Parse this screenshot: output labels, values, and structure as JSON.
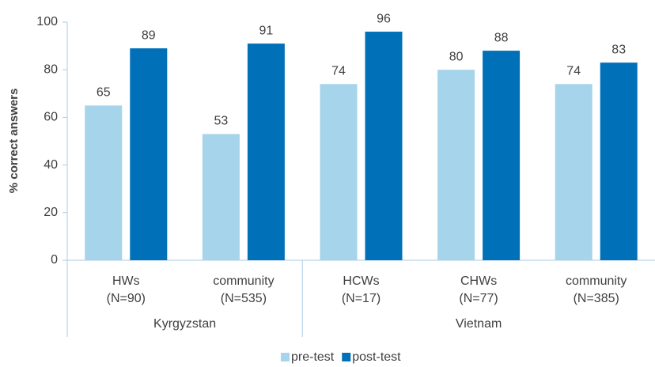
{
  "chart_data": {
    "type": "bar",
    "y_label": "% correct answers",
    "categories": [
      [
        "HWs",
        "(N=90)"
      ],
      [
        "community",
        "(N=535)"
      ],
      [
        "HCWs",
        "(N=17)"
      ],
      [
        "CHWs",
        "(N=77)"
      ],
      [
        "community",
        "(N=385)"
      ]
    ],
    "category_groups": [
      "Kyrgyzstan",
      "Kyrgyzstan",
      "Vietnam",
      "Vietnam",
      "Vietnam"
    ],
    "series": [
      {
        "name": "pre-test",
        "color": "#a6d4ea",
        "values": [
          65,
          53,
          74,
          80,
          74
        ]
      },
      {
        "name": "post-test",
        "color": "#0070b8",
        "values": [
          89,
          91,
          96,
          88,
          83
        ]
      }
    ],
    "ylim": [
      0,
      100
    ],
    "yticks": [
      0,
      20,
      40,
      60,
      80,
      100
    ],
    "legend": "bottom"
  }
}
